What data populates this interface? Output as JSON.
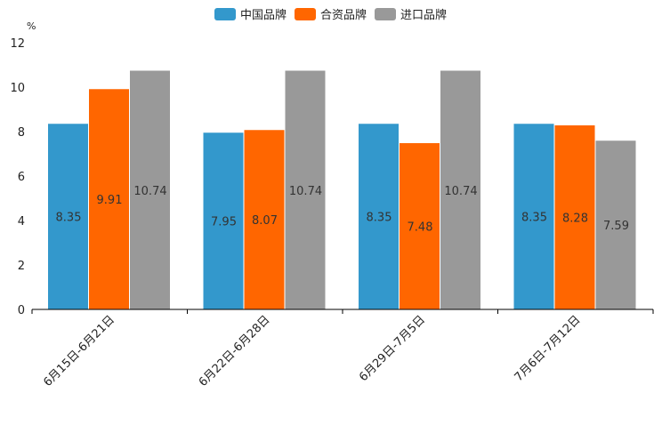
{
  "chart_data": {
    "type": "bar",
    "ylabel": "%",
    "ylim": [
      0,
      12
    ],
    "yticks": [
      0,
      2,
      4,
      6,
      8,
      10,
      12
    ],
    "categories": [
      "6月15日-6月21日",
      "6月22日-6月28日",
      "6月29日-7月5日",
      "7月6日-7月12日"
    ],
    "series": [
      {
        "name": "中国品牌",
        "color": "#3398CC",
        "values": [
          8.35,
          7.95,
          8.35,
          8.35
        ]
      },
      {
        "name": "合资品牌",
        "color": "#FF6600",
        "values": [
          9.91,
          8.07,
          7.48,
          8.28
        ]
      },
      {
        "name": "进口品牌",
        "color": "#999999",
        "values": [
          10.74,
          10.74,
          10.74,
          7.59
        ]
      }
    ],
    "legend_position": "top-center",
    "grid": false
  }
}
